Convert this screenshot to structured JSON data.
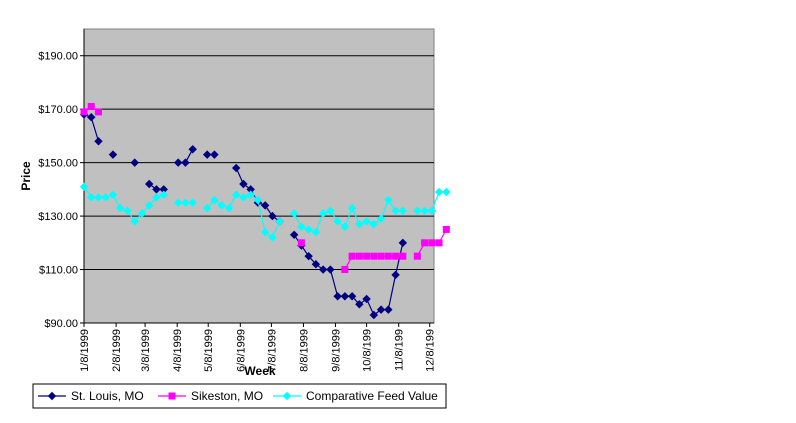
{
  "chart_data": {
    "type": "line",
    "title": "",
    "xlabel": "Week",
    "ylabel": "Price",
    "ylim": [
      90,
      200
    ],
    "y_ticks": [
      "$90.00",
      "$110.00",
      "$130.00",
      "$150.00",
      "$170.00",
      "$190.00"
    ],
    "y_tick_values": [
      90,
      110,
      130,
      150,
      170,
      190
    ],
    "x_ticks": [
      "1/8/1999",
      "2/8/1999",
      "3/8/1999",
      "4/8/1999",
      "5/8/1999",
      "6/8/1999",
      "7/8/1999",
      "8/8/1999",
      "9/8/1999",
      "10/8/199",
      "11/8/199",
      "12/8/199"
    ],
    "x_tick_values": [
      0,
      4.43,
      8.43,
      12.86,
      17.14,
      21.57,
      25.86,
      30.29,
      34.71,
      39,
      43.43,
      47.71
    ],
    "xlim": [
      0,
      48.3
    ],
    "grid": true,
    "legend_position": "bottom",
    "series": [
      {
        "name": "St. Louis, MO",
        "color": "#000080",
        "marker": "diamond",
        "segments": [
          [
            [
              0,
              168
            ],
            [
              1,
              167
            ],
            [
              2,
              158
            ]
          ],
          [
            [
              4,
              153
            ]
          ],
          [
            [
              7,
              150
            ]
          ],
          [
            [
              9,
              142
            ],
            [
              10,
              140
            ],
            [
              11,
              140
            ]
          ],
          [
            [
              13,
              150
            ],
            [
              14,
              150
            ],
            [
              15,
              155
            ]
          ],
          [
            [
              17,
              153
            ],
            [
              18,
              153
            ]
          ],
          [
            [
              21,
              148
            ],
            [
              22,
              142
            ],
            [
              23,
              140
            ],
            [
              24,
              135
            ],
            [
              25,
              134
            ],
            [
              26,
              130
            ],
            [
              27,
              128
            ]
          ],
          [
            [
              29,
              123
            ],
            [
              30,
              119
            ],
            [
              31,
              115
            ],
            [
              32,
              112
            ],
            [
              33,
              110
            ],
            [
              34,
              110
            ],
            [
              35,
              100
            ],
            [
              36,
              100
            ],
            [
              37,
              100
            ],
            [
              38,
              97
            ],
            [
              39,
              99
            ],
            [
              40,
              93
            ],
            [
              41,
              95
            ],
            [
              42,
              95
            ],
            [
              43,
              108
            ],
            [
              44,
              120
            ]
          ]
        ]
      },
      {
        "name": "Sikeston, MO",
        "color": "#ff00ff",
        "marker": "square",
        "segments": [
          [
            [
              0,
              169
            ],
            [
              1,
              171
            ],
            [
              2,
              169
            ]
          ],
          [
            [
              30,
              120
            ]
          ],
          [
            [
              36,
              110
            ],
            [
              37,
              115
            ],
            [
              38,
              115
            ],
            [
              39,
              115
            ],
            [
              40,
              115
            ],
            [
              41,
              115
            ],
            [
              42,
              115
            ],
            [
              43,
              115
            ],
            [
              44,
              115
            ]
          ],
          [
            [
              46,
              115
            ],
            [
              47,
              120
            ],
            [
              48,
              120
            ],
            [
              49,
              120
            ],
            [
              50,
              125
            ]
          ]
        ]
      },
      {
        "name": "Comparative Feed Value",
        "color": "#00ffff",
        "marker": "diamond",
        "segments": [
          [
            [
              0,
              141
            ],
            [
              1,
              137
            ],
            [
              2,
              137
            ],
            [
              3,
              137
            ],
            [
              4,
              138
            ],
            [
              5,
              133
            ],
            [
              6,
              132
            ],
            [
              7,
              128
            ],
            [
              8,
              131
            ],
            [
              9,
              134
            ],
            [
              10,
              137
            ],
            [
              11,
              138
            ]
          ],
          [
            [
              13,
              135
            ],
            [
              14,
              135
            ],
            [
              15,
              135
            ]
          ],
          [
            [
              17,
              133
            ],
            [
              18,
              136
            ],
            [
              19,
              134
            ],
            [
              20,
              133
            ],
            [
              21,
              138
            ],
            [
              22,
              137
            ],
            [
              23,
              138
            ],
            [
              24,
              136
            ],
            [
              25,
              124
            ],
            [
              26,
              122
            ],
            [
              27,
              128
            ]
          ],
          [
            [
              29,
              131
            ],
            [
              30,
              126
            ],
            [
              31,
              125
            ],
            [
              32,
              124
            ],
            [
              33,
              131
            ],
            [
              34,
              132
            ],
            [
              35,
              128
            ],
            [
              36,
              126
            ],
            [
              37,
              133
            ],
            [
              38,
              127
            ],
            [
              39,
              128
            ],
            [
              40,
              127
            ],
            [
              41,
              129
            ],
            [
              42,
              136
            ],
            [
              43,
              132
            ],
            [
              44,
              132
            ]
          ],
          [
            [
              46,
              132
            ],
            [
              47,
              132
            ],
            [
              48,
              132
            ],
            [
              49,
              139
            ],
            [
              50,
              139
            ]
          ]
        ]
      }
    ]
  }
}
